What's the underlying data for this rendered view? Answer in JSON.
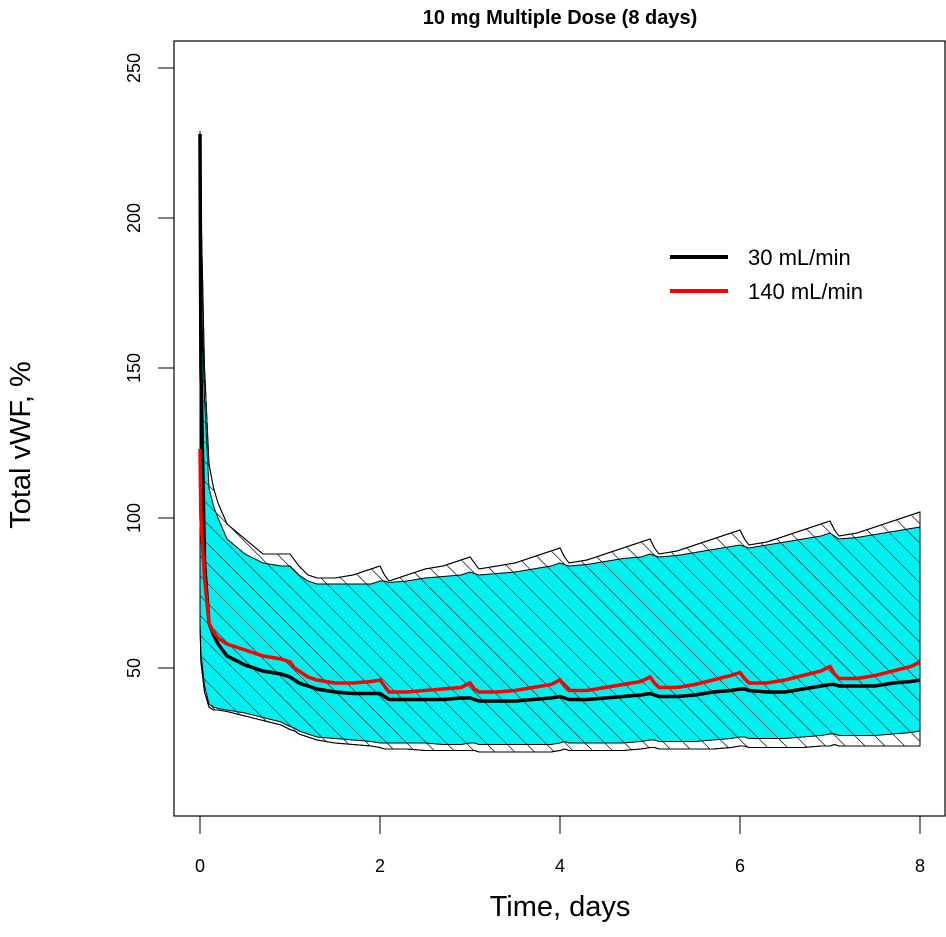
{
  "chart_data": {
    "type": "area",
    "title": "10 mg Multiple Dose (8 days)",
    "xlabel": "Time, days",
    "ylabel": "Total vWF, %",
    "xlim": [
      0,
      8
    ],
    "ylim": [
      0,
      250
    ],
    "x_ticks": [
      "0",
      "2",
      "4",
      "6",
      "8"
    ],
    "y_ticks": [
      "50",
      "100",
      "150",
      "200",
      "250"
    ],
    "grid": false,
    "legend_position": "top-right",
    "x": [
      0,
      0.01,
      0.05,
      0.1,
      0.15,
      0.2,
      0.3,
      0.5,
      0.7,
      0.9,
      1.0,
      1.05,
      1.1,
      1.2,
      1.3,
      1.5,
      1.7,
      1.9,
      2.0,
      2.05,
      2.1,
      2.3,
      2.5,
      2.7,
      2.9,
      3.0,
      3.05,
      3.1,
      3.3,
      3.5,
      3.7,
      3.9,
      4.0,
      4.05,
      4.1,
      4.3,
      4.5,
      4.7,
      4.9,
      5.0,
      5.05,
      5.1,
      5.3,
      5.5,
      5.7,
      5.9,
      6.0,
      6.05,
      6.1,
      6.3,
      6.5,
      6.7,
      6.9,
      7.0,
      7.05,
      7.1,
      7.3,
      7.5,
      7.7,
      7.9,
      8.0
    ],
    "series": [
      {
        "name": "30 mL/min",
        "color": "#000000",
        "lower": [
          65,
          52,
          42,
          37,
          36,
          36,
          35.5,
          34,
          32.5,
          31,
          29.5,
          29,
          28,
          27,
          26,
          25,
          24.5,
          24,
          23.5,
          23,
          23,
          23,
          22.5,
          22.5,
          22.5,
          22.5,
          22.5,
          22,
          22,
          22,
          22,
          22,
          22.5,
          23,
          22.5,
          22.5,
          22.5,
          22.5,
          23,
          23.5,
          23.5,
          23,
          23,
          23,
          23,
          23.5,
          24,
          24,
          23.5,
          23.5,
          23.5,
          23.5,
          24,
          24,
          24.5,
          24,
          24,
          24,
          24,
          24,
          24
        ],
        "median": [
          228,
          150,
          85,
          65,
          61,
          58,
          54,
          51,
          49,
          48,
          47,
          46,
          45,
          44,
          43,
          42,
          41.5,
          41.5,
          41.5,
          40.5,
          39.5,
          39.5,
          39.5,
          39.5,
          40,
          40,
          39.5,
          39,
          39,
          39,
          39.5,
          40,
          40.5,
          40,
          39.5,
          39.5,
          40,
          40.5,
          41,
          41.5,
          41,
          40.5,
          40.5,
          41,
          42,
          42.5,
          43,
          43,
          42.5,
          42,
          42,
          43,
          44,
          44.5,
          44.5,
          44,
          44,
          44,
          45,
          45.5,
          46
        ],
        "upper": [
          229,
          205,
          150,
          118,
          110,
          105,
          98,
          93,
          88,
          88,
          88,
          86,
          84,
          81,
          80,
          80,
          81,
          83,
          84,
          81,
          79,
          81,
          83,
          84,
          86,
          87,
          85,
          83,
          84,
          85,
          87,
          89,
          90,
          87,
          85,
          86,
          88,
          90,
          92,
          93,
          90,
          88,
          89,
          91,
          93,
          95,
          96,
          93,
          91,
          92,
          94,
          96,
          98,
          99,
          96,
          94,
          95,
          97,
          99,
          101,
          102
        ]
      },
      {
        "name": "140 mL/min",
        "color": "#ff0000",
        "lower": [
          64,
          55,
          44,
          38,
          37,
          36.5,
          36,
          35,
          33.5,
          32,
          30.5,
          30,
          29,
          28,
          27,
          26.5,
          26,
          25.5,
          25,
          25,
          25,
          25,
          25,
          24.5,
          24.5,
          25,
          25,
          24.5,
          24.5,
          24.5,
          24.5,
          24.5,
          25,
          25.5,
          25,
          25,
          25,
          25,
          25.5,
          26,
          26,
          25.5,
          25.5,
          25.5,
          26,
          26.5,
          27,
          27,
          26.5,
          26.5,
          26.5,
          27,
          27.5,
          28,
          28,
          27.5,
          27.5,
          27.5,
          28,
          28.5,
          29
        ],
        "median": [
          123,
          100,
          80,
          65,
          62,
          60,
          58,
          56,
          54,
          53,
          52,
          50,
          49,
          47,
          46,
          45,
          45,
          45.5,
          46,
          44,
          42,
          42,
          42.5,
          43,
          43.5,
          45,
          43,
          42,
          42,
          42.5,
          43.5,
          44.5,
          46,
          44,
          42.5,
          42.5,
          43.5,
          44.5,
          45.5,
          47,
          45,
          43.5,
          43.5,
          44.5,
          46,
          47.5,
          48.5,
          46.5,
          45,
          45,
          46,
          47.5,
          49,
          50.5,
          48,
          46.5,
          46.5,
          47.5,
          49,
          50.5,
          52
        ],
        "upper": [
          210,
          180,
          140,
          110,
          104,
          100,
          93,
          88,
          85,
          84,
          84,
          82.5,
          81,
          79,
          78,
          78,
          78,
          78,
          79,
          79,
          78.5,
          79,
          80,
          80.5,
          81,
          82,
          81.5,
          81,
          81.5,
          82,
          83,
          84,
          85,
          84.5,
          84,
          84.5,
          85.5,
          86.5,
          87,
          88,
          87.5,
          87,
          87.5,
          88.5,
          89.5,
          90.5,
          91,
          90.5,
          90,
          91,
          92,
          93,
          94,
          95,
          94,
          93,
          93.5,
          94.5,
          95.5,
          96.5,
          97
        ]
      }
    ]
  }
}
